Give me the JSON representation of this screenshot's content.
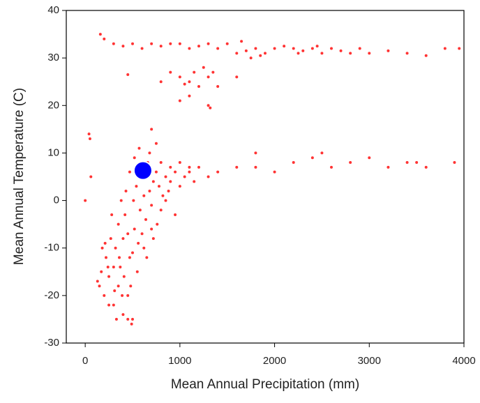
{
  "chart_data": {
    "type": "scatter",
    "x_label": "Mean Annual Precipitation (mm)",
    "y_label": "Mean Annual Temperature (C)",
    "xlim": [
      -200,
      4000
    ],
    "ylim": [
      -30,
      40
    ],
    "xticks": [
      0,
      1000,
      2000,
      3000,
      4000
    ],
    "yticks": [
      -30,
      -20,
      -10,
      0,
      10,
      20,
      30,
      40
    ],
    "series": [
      {
        "color": "#ff0000",
        "x": [
          160,
          200,
          300,
          400,
          500,
          600,
          700,
          800,
          900,
          1000,
          1100,
          1200,
          1300,
          1400,
          1500,
          1600,
          1700,
          1800,
          1900,
          2000,
          2100,
          2200,
          2300,
          2400,
          2500,
          2600,
          2700,
          2800,
          2900,
          3000,
          3200,
          3400,
          3600,
          3800,
          3950,
          1750,
          1850,
          2250,
          2450,
          1650,
          450,
          800,
          900,
          1000,
          1050,
          1100,
          1150,
          1200,
          1250,
          1300,
          1350,
          1400,
          1100,
          1300,
          1320,
          1000,
          1600,
          900,
          1000,
          1100,
          1200,
          1300,
          1400,
          1600,
          1800,
          2000,
          2200,
          2400,
          2600,
          2800,
          3000,
          3200,
          3400,
          3600,
          3900,
          1800,
          2500,
          3500,
          0,
          40,
          50,
          60,
          150,
          170,
          200,
          220,
          250,
          270,
          300,
          320,
          350,
          370,
          390,
          400,
          420,
          450,
          470,
          480,
          500,
          510,
          520,
          540,
          560,
          580,
          600,
          620,
          640,
          660,
          680,
          700,
          720,
          750,
          780,
          800,
          820,
          850,
          880,
          900,
          950,
          1000,
          1050,
          1100,
          1150,
          700,
          750,
          680,
          800,
          550,
          450,
          350,
          250,
          180,
          300,
          400,
          500,
          600,
          650,
          700,
          850,
          950,
          130,
          280,
          380,
          430,
          470,
          520,
          570,
          620,
          720,
          760,
          330,
          450,
          490,
          360,
          410,
          310,
          240,
          210
        ],
        "values": [
          35,
          34,
          33,
          32.5,
          33,
          32,
          33,
          32.5,
          33,
          33,
          32,
          32.5,
          33,
          32,
          33,
          31,
          31.5,
          32,
          31,
          32,
          32.5,
          32,
          31.5,
          32,
          31,
          32,
          31.5,
          31,
          32,
          31,
          31.5,
          31,
          30.5,
          32,
          32,
          30,
          30.5,
          31,
          32.5,
          33.5,
          26.5,
          25,
          27,
          26,
          24.5,
          25,
          27,
          24,
          28,
          26,
          27,
          24,
          22,
          20,
          19.5,
          21,
          26,
          7,
          8,
          6,
          7,
          5,
          6,
          7,
          7,
          6,
          8,
          9,
          7,
          8,
          9,
          7,
          8,
          7,
          8,
          10,
          10,
          8,
          0,
          14,
          13,
          5,
          -18,
          -15,
          -20,
          -12,
          -16,
          -8,
          -22,
          -10,
          -5,
          -14,
          -20,
          -24,
          -3,
          -7,
          -12,
          -18,
          -25,
          0,
          -6,
          3,
          -9,
          -2,
          5,
          1,
          -4,
          8,
          2,
          -1,
          4,
          6,
          3,
          -2,
          1,
          5,
          2,
          4,
          6,
          3,
          5,
          7,
          4,
          15,
          12,
          10,
          8,
          -15,
          -20,
          -18,
          -22,
          -10,
          -14,
          -8,
          -11,
          -7,
          -12,
          -6,
          0,
          -3,
          -17,
          -3,
          0,
          2,
          6,
          9,
          11,
          -10,
          -8,
          -5,
          -25,
          -25,
          -26,
          -12,
          -16,
          -19,
          -14,
          -9
        ]
      },
      {
        "color": "#0000ff",
        "x": [
          610
        ],
        "values": [
          6.3
        ]
      }
    ]
  }
}
